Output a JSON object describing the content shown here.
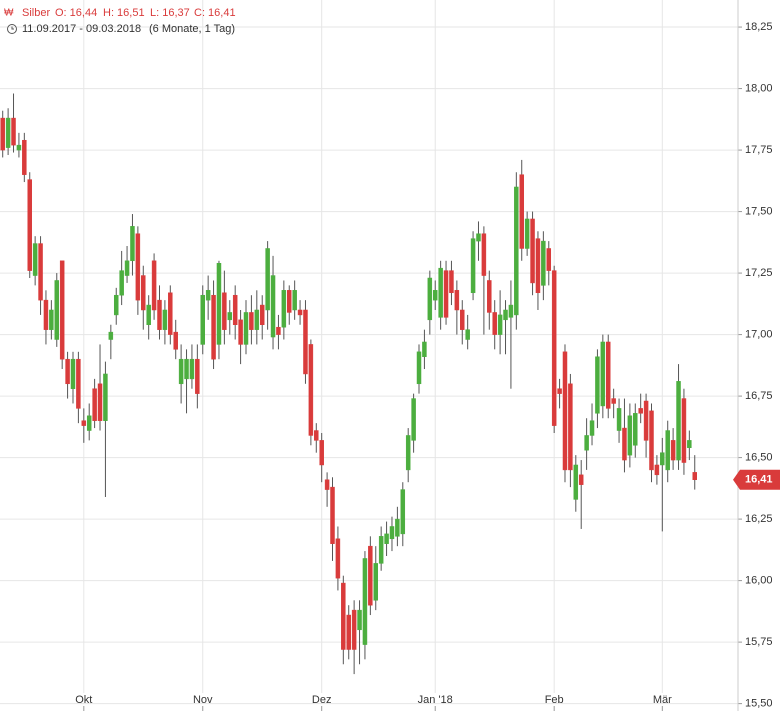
{
  "chart_data": {
    "type": "candlestick",
    "instrument": "Silber",
    "ohlc_labels": [
      "O: 16,44",
      "H: 16,51",
      "L: 16,37",
      "C: 16,41"
    ],
    "date_range": "11.09.2017 - 09.03.2018",
    "period": "(6 Monate, 1 Tag)",
    "last_price": {
      "value": 16.41,
      "label": "16,41"
    },
    "up_color": "#4cae3f",
    "down_color": "#d93b3b",
    "grid": true,
    "xlim": [
      -0.5,
      136
    ],
    "xticks": [
      {
        "value": 15,
        "label": "Okt"
      },
      {
        "value": 37,
        "label": "Nov"
      },
      {
        "value": 59,
        "label": "Dez"
      },
      {
        "value": 80,
        "label": "Jan '18"
      },
      {
        "value": 102,
        "label": "Feb"
      },
      {
        "value": 122,
        "label": "Mär"
      }
    ],
    "ylim": [
      15.47,
      18.36
    ],
    "yticks": [
      {
        "value": 15.5,
        "label": "15,50"
      },
      {
        "value": 15.75,
        "label": "15,75"
      },
      {
        "value": 16,
        "label": "16,00"
      },
      {
        "value": 16.25,
        "label": "16,25"
      },
      {
        "value": 16.5,
        "label": "16,50"
      },
      {
        "value": 16.75,
        "label": "16,75"
      },
      {
        "value": 17,
        "label": "17,00"
      },
      {
        "value": 17.25,
        "label": "17,25"
      },
      {
        "value": 17.5,
        "label": "17,50"
      },
      {
        "value": 17.75,
        "label": "17,75"
      },
      {
        "value": 18,
        "label": "18,00"
      },
      {
        "value": 18.25,
        "label": "18,25"
      }
    ],
    "open": [
      17.88,
      17.76,
      17.88,
      17.75,
      17.79,
      17.63,
      17.24,
      17.37,
      17.14,
      17.02,
      16.98,
      17.3,
      16.9,
      16.78,
      16.9,
      16.65,
      16.61,
      16.78,
      16.8,
      16.65,
      16.98,
      17.08,
      17.16,
      17.24,
      17.3,
      17.41,
      17.24,
      17.04,
      17.3,
      17.14,
      17.02,
      17.17,
      17.01,
      16.8,
      16.82,
      16.82,
      16.9,
      16.96,
      17.14,
      17.16,
      16.96,
      17.17,
      17.06,
      17.16,
      17.06,
      16.96,
      17.09,
      17.02,
      17.12,
      17.1,
      16.99,
      17.03,
      17.03,
      17.18,
      17.1,
      17.1,
      17.1,
      16.96,
      16.61,
      16.57,
      16.41,
      16.38,
      16.17,
      15.99,
      15.86,
      15.88,
      15.8,
      15.74,
      16.14,
      15.92,
      16.07,
      16.15,
      16.17,
      16.18,
      16.19,
      16.45,
      16.57,
      16.8,
      16.91,
      17.06,
      17.14,
      17.07,
      17.26,
      17.26,
      17.18,
      17.1,
      16.98,
      17.17,
      17.38,
      17.41,
      17.22,
      17.09,
      17.0,
      17.06,
      17.07,
      17.08,
      17.65,
      17.35,
      17.47,
      17.39,
      17.2,
      17.35,
      17.26,
      16.78,
      16.93,
      16.8,
      16.33,
      16.43,
      16.53,
      16.59,
      16.68,
      16.71,
      16.97,
      16.74,
      16.61,
      16.62,
      16.51,
      16.55,
      16.7,
      16.73,
      16.69,
      16.47,
      16.47,
      16.45,
      16.57,
      16.49,
      16.74,
      16.54,
      16.44
    ],
    "high": [
      17.91,
      17.92,
      17.98,
      17.82,
      17.82,
      17.66,
      17.4,
      17.4,
      17.18,
      17.14,
      17.25,
      17.3,
      16.93,
      16.93,
      16.93,
      16.7,
      16.72,
      16.82,
      16.96,
      16.89,
      17.04,
      17.19,
      17.34,
      17.36,
      17.49,
      17.44,
      17.28,
      17.16,
      17.33,
      17.2,
      17.14,
      17.2,
      17.06,
      16.96,
      16.94,
      16.96,
      16.96,
      17.2,
      17.24,
      17.22,
      17.3,
      17.26,
      17.14,
      17.2,
      17.1,
      17.14,
      17.16,
      17.18,
      17.16,
      17.38,
      17.32,
      17.08,
      17.22,
      17.2,
      17.22,
      17.14,
      17.14,
      16.98,
      16.64,
      16.6,
      16.44,
      16.42,
      16.22,
      16.02,
      15.9,
      15.92,
      15.92,
      16.12,
      16.18,
      16.14,
      16.22,
      16.24,
      16.26,
      16.3,
      16.4,
      16.62,
      16.76,
      16.96,
      17.02,
      17.26,
      17.22,
      17.3,
      17.3,
      17.3,
      17.22,
      17.14,
      17.08,
      17.42,
      17.46,
      17.44,
      17.26,
      17.14,
      17.18,
      17.14,
      17.22,
      17.66,
      17.71,
      17.5,
      17.5,
      17.42,
      17.42,
      17.38,
      17.28,
      16.82,
      16.96,
      16.84,
      16.51,
      16.49,
      16.66,
      16.72,
      16.94,
      17.0,
      17.0,
      16.78,
      16.74,
      16.74,
      16.72,
      16.72,
      16.76,
      16.76,
      16.72,
      16.51,
      16.58,
      16.65,
      16.62,
      16.88,
      16.78,
      16.61,
      16.51
    ],
    "low": [
      17.72,
      17.73,
      17.74,
      17.72,
      17.62,
      17.23,
      17.2,
      17.08,
      16.96,
      16.98,
      16.95,
      16.86,
      16.74,
      16.72,
      16.64,
      16.56,
      16.57,
      16.62,
      16.61,
      16.34,
      16.9,
      17.04,
      17.12,
      17.21,
      17.24,
      17.08,
      17.02,
      16.98,
      17.06,
      16.98,
      16.96,
      16.96,
      16.9,
      16.72,
      16.68,
      16.78,
      16.7,
      16.92,
      17.06,
      16.86,
      16.9,
      16.96,
      17.0,
      16.98,
      16.88,
      16.92,
      16.96,
      16.96,
      16.98,
      17.02,
      16.94,
      16.94,
      16.98,
      17.04,
      17.06,
      17.04,
      16.8,
      16.55,
      16.52,
      16.4,
      16.3,
      16.08,
      15.96,
      15.66,
      15.68,
      15.62,
      15.66,
      15.68,
      15.86,
      15.88,
      16.04,
      16.1,
      16.12,
      16.14,
      16.14,
      16.4,
      16.52,
      16.76,
      16.86,
      17.0,
      17.1,
      17.02,
      17.04,
      17.12,
      17.0,
      16.96,
      16.94,
      17.14,
      17.3,
      17.0,
      17.02,
      16.94,
      16.92,
      16.92,
      16.78,
      17.02,
      17.3,
      17.32,
      17.16,
      17.1,
      17.14,
      17.2,
      16.6,
      16.7,
      16.4,
      16.38,
      16.28,
      16.21,
      16.45,
      16.55,
      16.62,
      16.66,
      16.66,
      16.66,
      16.56,
      16.44,
      16.46,
      16.5,
      16.64,
      16.5,
      16.4,
      16.39,
      16.2,
      16.4,
      16.45,
      16.45,
      16.43,
      16.49,
      16.37
    ],
    "close": [
      17.75,
      17.88,
      17.77,
      17.77,
      17.65,
      17.26,
      17.37,
      17.14,
      17.02,
      17.1,
      17.22,
      16.9,
      16.8,
      16.9,
      16.7,
      16.63,
      16.67,
      16.65,
      16.65,
      16.84,
      17.01,
      17.16,
      17.26,
      17.3,
      17.44,
      17.14,
      17.1,
      17.12,
      17.1,
      17.02,
      17.1,
      17.0,
      16.94,
      16.9,
      16.9,
      16.9,
      16.76,
      17.16,
      17.18,
      16.9,
      17.29,
      17.02,
      17.09,
      17.04,
      16.96,
      17.09,
      17.02,
      17.1,
      17.04,
      17.35,
      17.24,
      17.0,
      17.18,
      17.09,
      17.18,
      17.08,
      16.84,
      16.59,
      16.57,
      16.47,
      16.37,
      16.15,
      16.01,
      15.72,
      15.72,
      15.72,
      15.88,
      16.09,
      15.9,
      16.07,
      16.18,
      16.19,
      16.22,
      16.25,
      16.37,
      16.59,
      16.74,
      16.93,
      16.97,
      17.23,
      17.18,
      17.27,
      17.07,
      17.17,
      17.1,
      17.02,
      17.02,
      17.39,
      17.41,
      17.24,
      17.09,
      17.0,
      17.08,
      17.1,
      17.12,
      17.6,
      17.35,
      17.47,
      17.21,
      17.17,
      17.38,
      17.26,
      16.63,
      16.76,
      16.45,
      16.45,
      16.47,
      16.39,
      16.59,
      16.65,
      16.91,
      16.97,
      16.7,
      16.72,
      16.7,
      16.49,
      16.67,
      16.68,
      16.68,
      16.57,
      16.45,
      16.43,
      16.52,
      16.61,
      16.49,
      16.81,
      16.48,
      16.57,
      16.41
    ]
  }
}
